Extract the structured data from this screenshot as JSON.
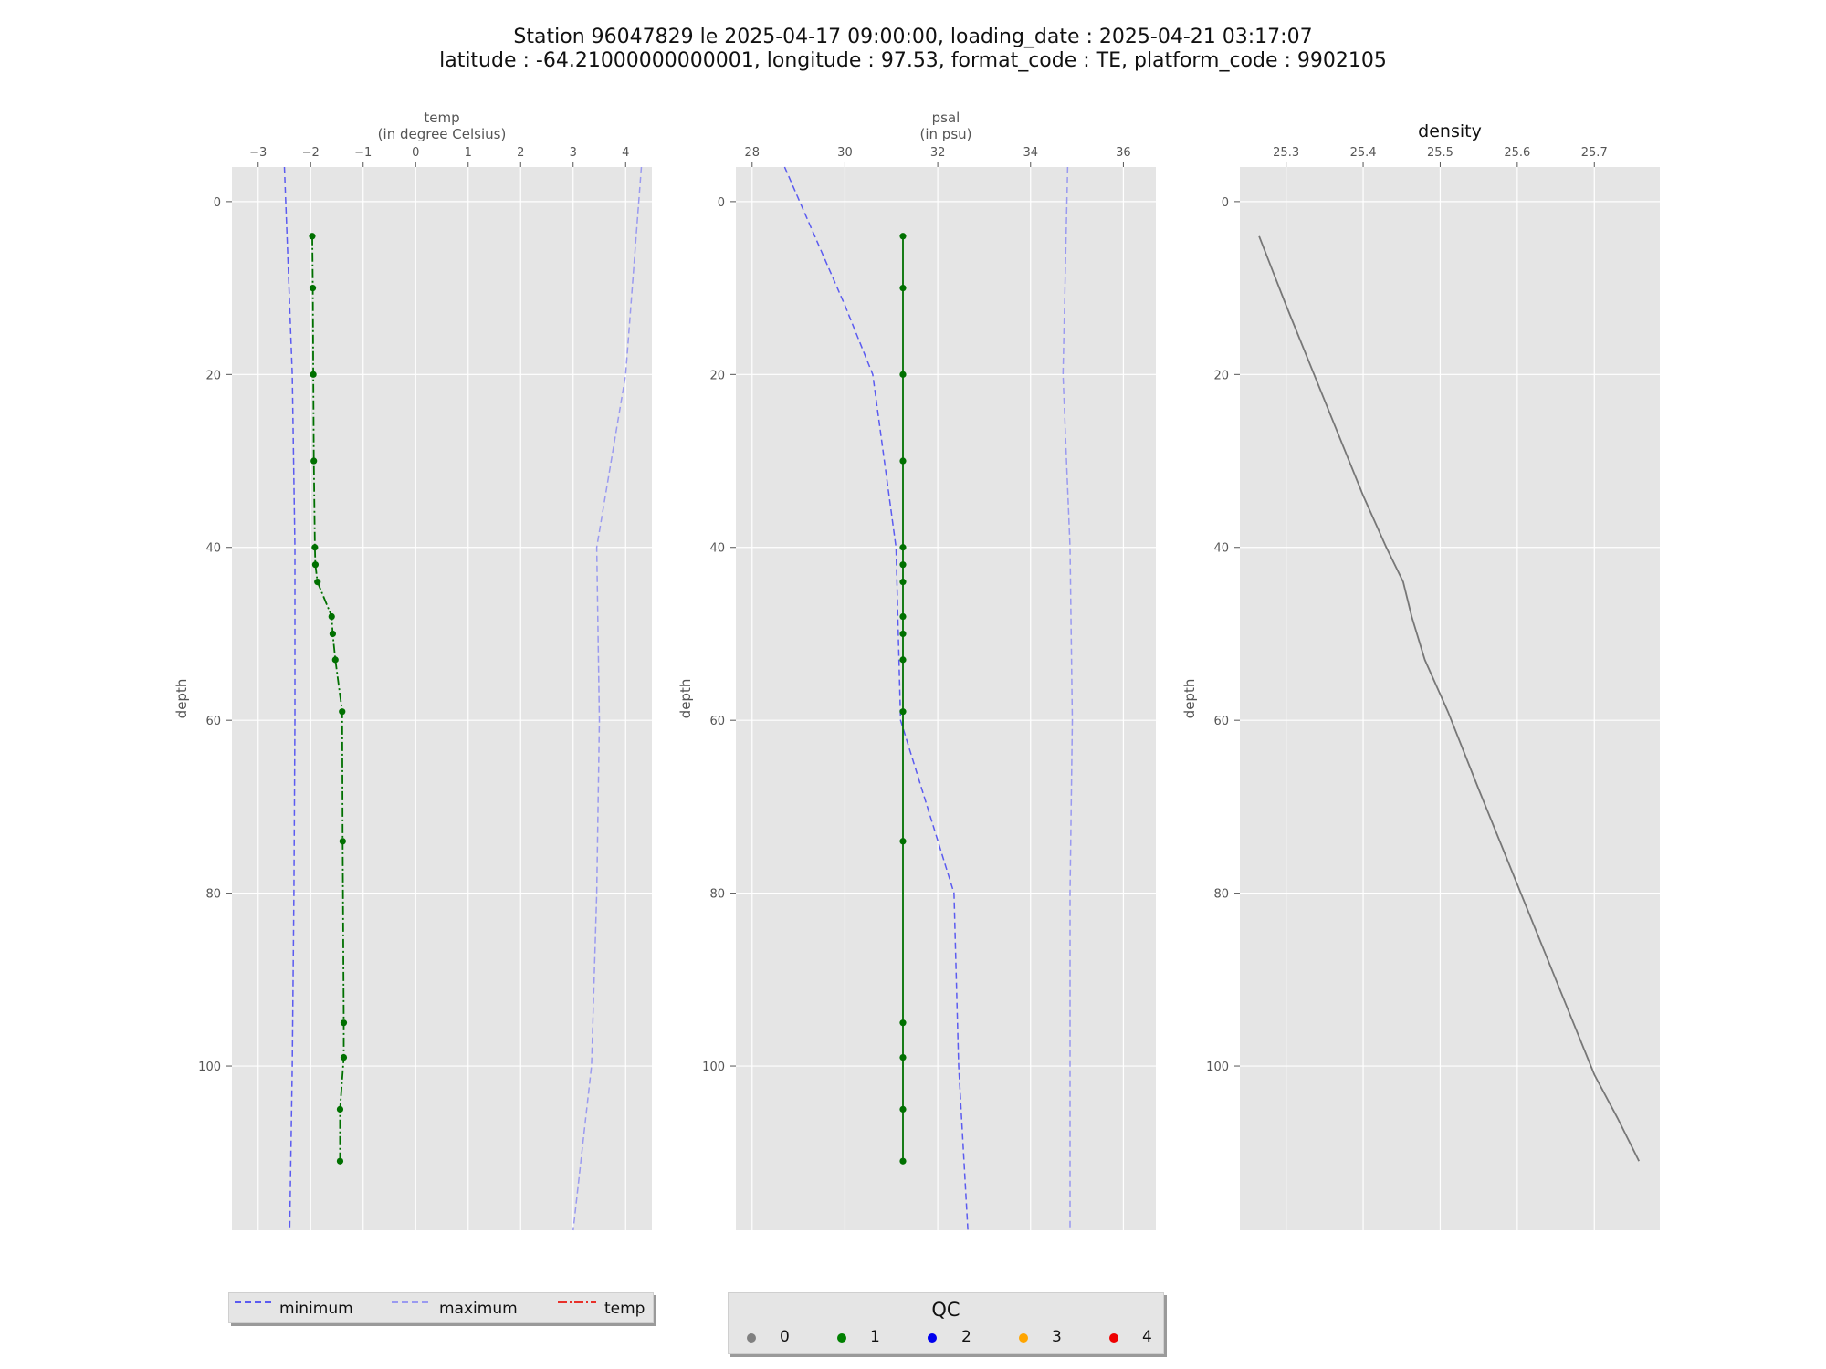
{
  "title_line1": "Station 96047829 le 2025-04-17 09:00:00, loading_date : 2025-04-21 03:17:07",
  "title_line2": "latitude : -64.21000000000001, longitude : 97.53, format_code : TE, platform_code : 9902105",
  "colors": {
    "panel_bg": "#e5e5e5",
    "grid": "#ffffff",
    "minimum": "#5b5bf0",
    "maximum": "#9a9af0",
    "temp_legend": "#e8312a",
    "qc_line": "#007000",
    "density_line": "#777777"
  },
  "legend_lines": {
    "items": [
      {
        "label": "minimum",
        "style": "dashed",
        "color": "#5b5bf0"
      },
      {
        "label": "maximum",
        "style": "dashed",
        "color": "#9a9af0"
      },
      {
        "label": "temp",
        "style": "dashdot",
        "color": "#e8312a"
      }
    ]
  },
  "legend_qc": {
    "title": "QC",
    "items": [
      {
        "label": "0",
        "color": "#808080"
      },
      {
        "label": "1",
        "color": "#008000"
      },
      {
        "label": "2",
        "color": "#0000ee"
      },
      {
        "label": "3",
        "color": "#ffa500"
      },
      {
        "label": "4",
        "color": "#ee0000"
      }
    ]
  },
  "chart_data": [
    {
      "type": "line",
      "id": "temp",
      "title": "temp\n(in degree Celsius)",
      "xlabel": "temp (in degree Celsius)",
      "ylabel": "depth",
      "xlim": [
        -3.5,
        4.5
      ],
      "ylim": [
        119,
        -4
      ],
      "y_inverted": true,
      "xticks": [
        -3,
        -2,
        -1,
        0,
        1,
        2,
        3,
        4
      ],
      "yticks": [
        0,
        20,
        40,
        60,
        80,
        100
      ],
      "xtick_labels": [
        "−3",
        "−2",
        "−1",
        "0",
        "1",
        "2",
        "3",
        "4"
      ],
      "ytick_labels": [
        "0",
        "20",
        "40",
        "60",
        "80",
        "100"
      ],
      "grid": true,
      "series": [
        {
          "name": "minimum",
          "style": "dashed",
          "x": [
            -2.5,
            -2.35,
            -2.3,
            -2.3,
            -2.32,
            -2.35,
            -2.4
          ],
          "y": [
            -4,
            20,
            40,
            60,
            80,
            100,
            119
          ]
        },
        {
          "name": "maximum",
          "style": "dashed",
          "x": [
            4.3,
            4.0,
            3.45,
            3.5,
            3.45,
            3.35,
            3.0
          ],
          "y": [
            -4,
            20,
            40,
            60,
            80,
            100,
            119
          ]
        },
        {
          "name": "temp",
          "style": "dashdot",
          "markers": true,
          "qc": 1,
          "x": [
            -1.97,
            -1.96,
            -1.95,
            -1.94,
            -1.92,
            -1.91,
            -1.87,
            -1.6,
            -1.58,
            -1.53,
            -1.4,
            -1.39,
            -1.37,
            -1.37,
            -1.44,
            -1.44
          ],
          "y": [
            4,
            10,
            20,
            30,
            40,
            42,
            44,
            48,
            50,
            53,
            59,
            74,
            95,
            99,
            105,
            111
          ]
        }
      ]
    },
    {
      "type": "line",
      "id": "psal",
      "title": "psal\n(in psu)",
      "xlabel": "psal (in psu)",
      "ylabel": "depth",
      "xlim": [
        27.65,
        36.7
      ],
      "ylim": [
        119,
        -4
      ],
      "y_inverted": true,
      "xticks": [
        28,
        30,
        32,
        34,
        36
      ],
      "yticks": [
        0,
        20,
        40,
        60,
        80,
        100
      ],
      "xtick_labels": [
        "28",
        "30",
        "32",
        "34",
        "36"
      ],
      "ytick_labels": [
        "0",
        "20",
        "40",
        "60",
        "80",
        "100"
      ],
      "grid": true,
      "series": [
        {
          "name": "minimum",
          "style": "dashed",
          "x": [
            28.7,
            30.0,
            30.6,
            31.1,
            31.2,
            32.35,
            32.45,
            32.65
          ],
          "y": [
            -4,
            12,
            20,
            40,
            60,
            80,
            100,
            119
          ]
        },
        {
          "name": "maximum",
          "style": "dashed",
          "x": [
            34.8,
            34.7,
            34.85,
            34.9,
            34.85,
            34.85
          ],
          "y": [
            -4,
            20,
            40,
            60,
            80,
            119
          ]
        },
        {
          "name": "psal",
          "style": "solid",
          "markers": true,
          "qc": 1,
          "x": [
            31.25,
            31.25,
            31.25,
            31.25,
            31.25,
            31.25,
            31.25,
            31.25,
            31.25,
            31.25,
            31.25,
            31.25,
            31.25,
            31.25,
            31.25,
            31.25
          ],
          "y": [
            4,
            10,
            20,
            30,
            40,
            42,
            44,
            48,
            50,
            53,
            59,
            74,
            95,
            99,
            105,
            111
          ]
        }
      ]
    },
    {
      "type": "line",
      "id": "density",
      "title": "density",
      "xlabel": "",
      "ylabel": "depth",
      "xlim": [
        25.24,
        25.785
      ],
      "ylim": [
        119,
        -4
      ],
      "y_inverted": true,
      "xticks": [
        25.3,
        25.4,
        25.5,
        25.6,
        25.7
      ],
      "yticks": [
        0,
        20,
        40,
        60,
        80,
        100
      ],
      "xtick_labels": [
        "25.3",
        "25.4",
        "25.5",
        "25.6",
        "25.7"
      ],
      "ytick_labels": [
        "0",
        "20",
        "40",
        "60",
        "80",
        "100"
      ],
      "grid": true,
      "series": [
        {
          "name": "density",
          "style": "solid",
          "x": [
            25.265,
            25.3,
            25.35,
            25.4,
            25.43,
            25.452,
            25.463,
            25.48,
            25.51,
            25.55,
            25.6,
            25.65,
            25.7,
            25.73,
            25.758
          ],
          "y": [
            4,
            12,
            23,
            34,
            40,
            44,
            48,
            53,
            59,
            68,
            79,
            90,
            101,
            106,
            111
          ]
        }
      ]
    }
  ]
}
